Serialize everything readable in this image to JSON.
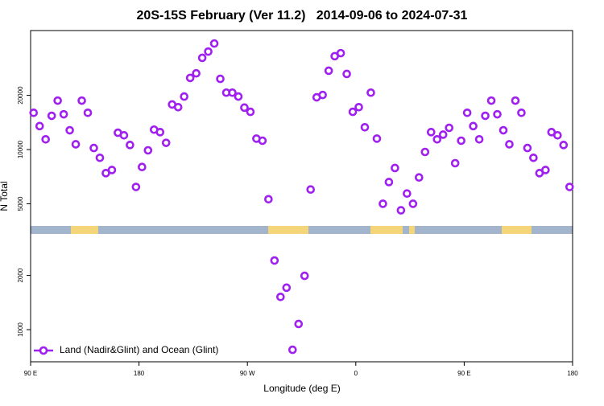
{
  "chart_data": {
    "type": "scatter",
    "title": "20S-15S February (Ver 11.2)   2014-09-06 to 2024-07-31",
    "x_label": "Longitude (deg E)",
    "y_label": "N Total",
    "log_y": true,
    "legend": "bottom-left",
    "xlim": [
      90,
      540
    ],
    "ylim": [
      663,
      45800
    ],
    "xticks": [
      {
        "value": 90,
        "label": "90 E"
      },
      180,
      {
        "value": 270,
        "label": "90 W"
      },
      {
        "value": 360,
        "label": "0"
      },
      {
        "value": 450,
        "label": "90 E"
      },
      {
        "value": 540,
        "label": "180"
      }
    ],
    "yticks": [
      1000,
      2000,
      5000,
      10000,
      20000
    ],
    "series": [
      {
        "name": "Land (Nadir&Glint) and Ocean (Glint)",
        "color": "#a020f0",
        "x": [
          92.5,
          97.5,
          102.5,
          107.5,
          112.5,
          117.5,
          122.5,
          127.5,
          132.5,
          137.5,
          142.5,
          147.5,
          152.5,
          157.5,
          162.5,
          167.5,
          172.5,
          177.5,
          182.5,
          187.5,
          192.5,
          197.5,
          202.5,
          207.5,
          212.5,
          217.5,
          222.5,
          227.5,
          232.5,
          237.5,
          242.5,
          247.5,
          252.5,
          257.5,
          262.5,
          267.5,
          272.5,
          277.5,
          282.5,
          287.5,
          292.5,
          297.5,
          302.5,
          307.5,
          312.5,
          317.5,
          322.5,
          327.5,
          332.5,
          337.5,
          342.5,
          347.5,
          352.5,
          357.5,
          362.5,
          367.5,
          372.5,
          377.5,
          382.5,
          387.5,
          392.5,
          397.5,
          402.5,
          407.5,
          412.5,
          417.5,
          422.5,
          427.5,
          432.5,
          437.5,
          442.5,
          447.5,
          452.5,
          457.5,
          462.5,
          467.5,
          472.5,
          477.5,
          482.5,
          487.5,
          492.5,
          497.5,
          502.5,
          507.5,
          512.5,
          517.5,
          522.5,
          527.5,
          532.5,
          537.5
        ],
        "values": [
          16000,
          13500,
          11400,
          15400,
          18700,
          15700,
          12800,
          10700,
          18700,
          16000,
          10200,
          9000,
          7400,
          7700,
          12400,
          12000,
          10600,
          6200,
          8000,
          9900,
          12900,
          12500,
          10900,
          17800,
          17200,
          19700,
          25000,
          26500,
          32300,
          35000,
          38800,
          24700,
          20700,
          20700,
          19700,
          17100,
          16200,
          11500,
          11200,
          5300,
          2420,
          1520,
          1710,
          773,
          1075,
          1990,
          6000,
          19500,
          20100,
          27400,
          33000,
          34300,
          26300,
          16200,
          17200,
          13300,
          20700,
          11500,
          5000,
          6600,
          7900,
          4600,
          5700,
          5000,
          7000,
          9700,
          12500,
          11400,
          12100,
          13200,
          8400,
          11200,
          16000,
          13500,
          11400,
          15400,
          18700,
          15700,
          12800,
          10700,
          18700,
          16000,
          10200,
          9000,
          7400,
          7700,
          12500,
          12000,
          10600,
          6200
        ]
      }
    ]
  }
}
